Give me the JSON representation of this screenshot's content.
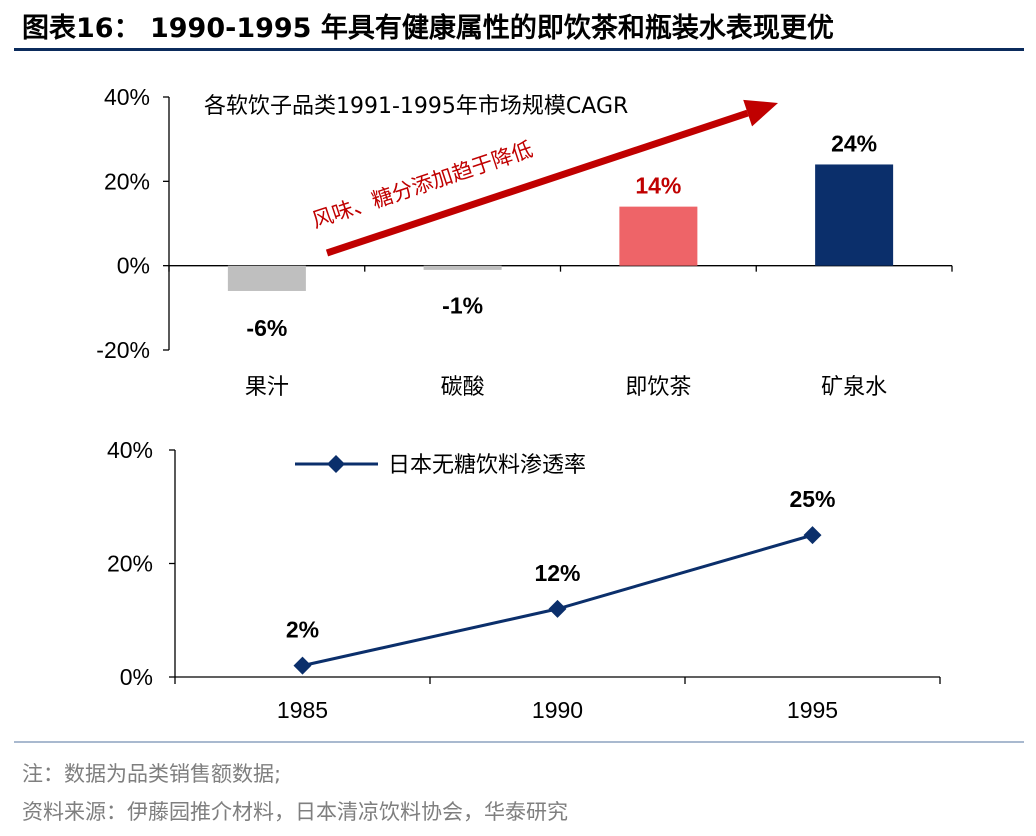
{
  "header": {
    "title": "图表16： 1990-1995 年具有健康属性的即饮茶和瓶装水表现更优"
  },
  "footer": {
    "note": "注：数据为品类销售额数据;",
    "source": "资料来源：伊藤园推介材料，日本清凉饮料协会，华泰研究"
  },
  "chart_data": [
    {
      "type": "bar",
      "annotation": "各软饮子品类1991-1995年市场规模CAGR",
      "arrow_text": "风味、糖分添加趋于降低",
      "categories": [
        "果汁",
        "碳酸",
        "即饮茶",
        "矿泉水"
      ],
      "values": [
        -6,
        -1,
        14,
        24
      ],
      "value_labels": [
        "-6%",
        "-1%",
        "14%",
        "24%"
      ],
      "bar_colors": [
        "#bfbfbf",
        "#bfbfbf",
        "#ee6468",
        "#0b2f6b"
      ],
      "label_colors": [
        "#000000",
        "#000000",
        "#c00000",
        "#000000"
      ],
      "ylim": [
        -20,
        40
      ],
      "yticks": [
        -20,
        0,
        20,
        40
      ],
      "ytick_labels": [
        "-20%",
        "0%",
        "20%",
        "40%"
      ],
      "arrow_color": "#c00000"
    },
    {
      "type": "line",
      "x": [
        "1985",
        "1990",
        "1995"
      ],
      "series": [
        {
          "name": "日本无糖饮料渗透率",
          "values": [
            2,
            12,
            25
          ],
          "value_labels": [
            "2%",
            "12%",
            "25%"
          ],
          "color": "#0b2f6b",
          "marker": "diamond"
        }
      ],
      "ylim": [
        0,
        40
      ],
      "yticks": [
        0,
        20,
        40
      ],
      "ytick_labels": [
        "0%",
        "20%",
        "40%"
      ],
      "legend_position": "top-left"
    }
  ]
}
